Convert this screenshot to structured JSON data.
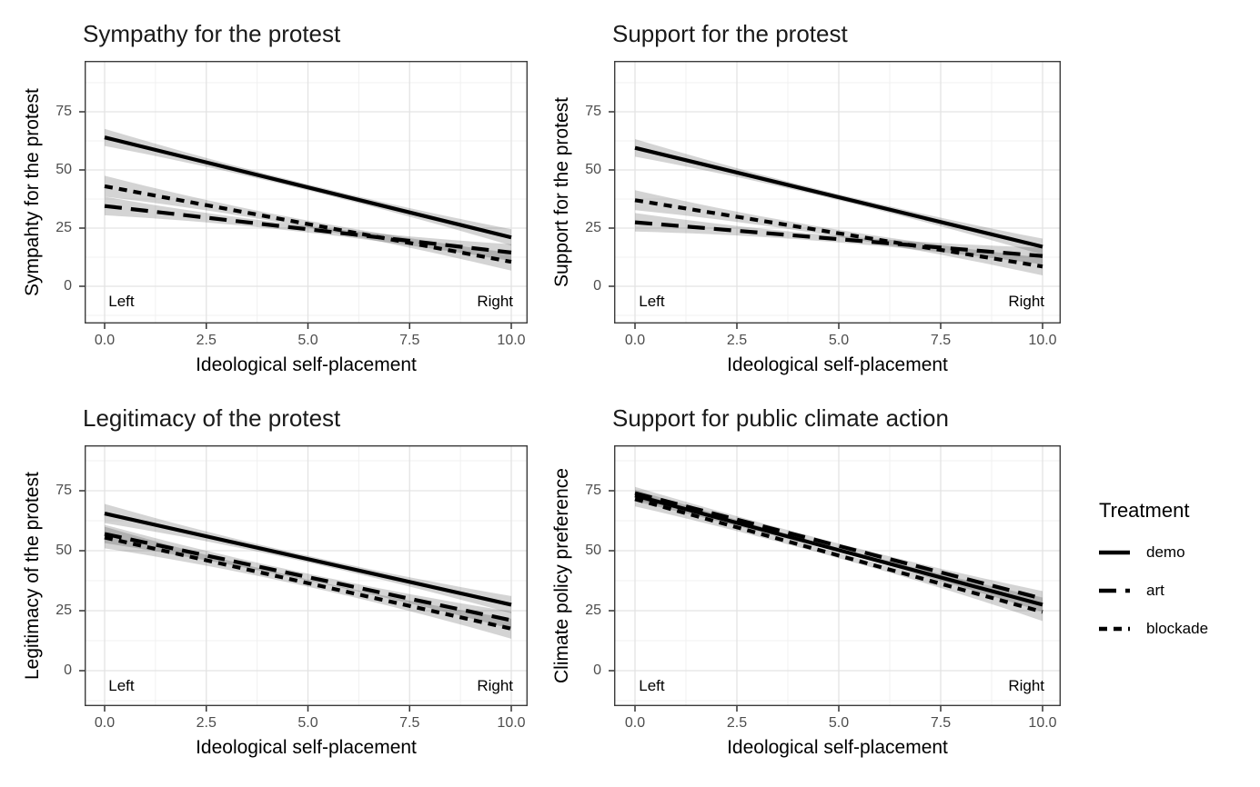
{
  "figure": {
    "background": "#ffffff",
    "legend": {
      "title": "Treatment",
      "position": "right",
      "items": [
        {
          "label": "demo",
          "linetype": "solid"
        },
        {
          "label": "art",
          "linetype": "longdash"
        },
        {
          "label": "blockade",
          "linetype": "dashed"
        }
      ]
    },
    "colors": {
      "line": "#000000",
      "ribbon": "rgba(0,0,0,0.17)",
      "grid_major": "#e3e3e3",
      "grid_minor": "#f0f0f0",
      "panel_border": "#3c3c3c",
      "tick_mark": "#333333",
      "tick_label": "#4d4d4d",
      "text": "#000000"
    }
  },
  "chart_data": [
    {
      "type": "line",
      "title": "Sympathy for the protest",
      "xlabel": "Ideological self-placement",
      "ylabel": "Sympahty for the protest",
      "x_range": [
        0,
        10
      ],
      "x_ticks": [
        "0.0",
        "2.5",
        "5.0",
        "7.5",
        "10.0"
      ],
      "y_ticks": [
        "0",
        "25",
        "50",
        "75"
      ],
      "ylim": [
        -16,
        97
      ],
      "grid": true,
      "annotations": [
        {
          "text": "Left",
          "x": 0.05,
          "y": -6.5,
          "align": "left"
        },
        {
          "text": "Right",
          "x": 10,
          "y": -6.5,
          "align": "right"
        }
      ],
      "series": [
        {
          "name": "demo",
          "linetype": "solid",
          "x": [
            0,
            10
          ],
          "y": [
            64,
            21
          ],
          "ci_halfwidth": {
            "x0": 3.7,
            "mid": 1.3,
            "x10": 3.5
          }
        },
        {
          "name": "art",
          "linetype": "longdash",
          "x": [
            0,
            10
          ],
          "y": [
            34.5,
            14.5
          ],
          "ci_halfwidth": {
            "x0": 4.0,
            "mid": 1.4,
            "x10": 3.6
          }
        },
        {
          "name": "blockade",
          "linetype": "dashed",
          "x": [
            0,
            10
          ],
          "y": [
            43,
            10.5
          ],
          "ci_halfwidth": {
            "x0": 4.5,
            "mid": 1.5,
            "x10": 3.8
          }
        }
      ]
    },
    {
      "type": "line",
      "title": "Support for the protest",
      "xlabel": "Ideological self-placement",
      "ylabel": "Support for the protest",
      "x_range": [
        0,
        10
      ],
      "x_ticks": [
        "0.0",
        "2.5",
        "5.0",
        "7.5",
        "10.0"
      ],
      "y_ticks": [
        "0",
        "25",
        "50",
        "75"
      ],
      "ylim": [
        -16,
        97
      ],
      "grid": true,
      "annotations": [
        {
          "text": "Left",
          "x": 0.05,
          "y": -6.5,
          "align": "left"
        },
        {
          "text": "Right",
          "x": 10,
          "y": -6.5,
          "align": "right"
        }
      ],
      "series": [
        {
          "name": "demo",
          "linetype": "solid",
          "x": [
            0,
            10
          ],
          "y": [
            59.5,
            17
          ],
          "ci_halfwidth": {
            "x0": 3.8,
            "mid": 1.3,
            "x10": 3.5
          }
        },
        {
          "name": "art",
          "linetype": "longdash",
          "x": [
            0,
            10
          ],
          "y": [
            27.5,
            13
          ],
          "ci_halfwidth": {
            "x0": 4.0,
            "mid": 1.4,
            "x10": 3.6
          }
        },
        {
          "name": "blockade",
          "linetype": "dashed",
          "x": [
            0,
            10
          ],
          "y": [
            37,
            8.5
          ],
          "ci_halfwidth": {
            "x0": 4.3,
            "mid": 1.5,
            "x10": 3.8
          }
        }
      ]
    },
    {
      "type": "line",
      "title": "Legitimacy of the protest",
      "xlabel": "Ideological self-placement",
      "ylabel": "Legitimacy of the protest",
      "x_range": [
        0,
        10
      ],
      "x_ticks": [
        "0.0",
        "2.5",
        "5.0",
        "7.5",
        "10.0"
      ],
      "y_ticks": [
        "0",
        "25",
        "50",
        "75"
      ],
      "ylim": [
        -15,
        94
      ],
      "grid": true,
      "annotations": [
        {
          "text": "Left",
          "x": 0.05,
          "y": -6.5,
          "align": "left"
        },
        {
          "text": "Right",
          "x": 10,
          "y": -6.5,
          "align": "right"
        }
      ],
      "series": [
        {
          "name": "demo",
          "linetype": "solid",
          "x": [
            0,
            10
          ],
          "y": [
            65.5,
            27.5
          ],
          "ci_halfwidth": {
            "x0": 4.0,
            "mid": 1.4,
            "x10": 3.6
          }
        },
        {
          "name": "art",
          "linetype": "longdash",
          "x": [
            0,
            10
          ],
          "y": [
            57,
            21
          ],
          "ci_halfwidth": {
            "x0": 3.8,
            "mid": 1.4,
            "x10": 3.6
          }
        },
        {
          "name": "blockade",
          "linetype": "dashed",
          "x": [
            0,
            10
          ],
          "y": [
            55.5,
            17.5
          ],
          "ci_halfwidth": {
            "x0": 4.5,
            "mid": 1.5,
            "x10": 4.2
          }
        }
      ]
    },
    {
      "type": "line",
      "title": "Support for public climate action",
      "xlabel": "Ideological self-placement",
      "ylabel": "Climate policy preference",
      "x_range": [
        0,
        10
      ],
      "x_ticks": [
        "0.0",
        "2.5",
        "5.0",
        "7.5",
        "10.0"
      ],
      "y_ticks": [
        "0",
        "25",
        "50",
        "75"
      ],
      "ylim": [
        -15,
        94
      ],
      "grid": true,
      "annotations": [
        {
          "text": "Left",
          "x": 0.05,
          "y": -6.5,
          "align": "left"
        },
        {
          "text": "Right",
          "x": 10,
          "y": -6.5,
          "align": "right"
        }
      ],
      "series": [
        {
          "name": "demo",
          "linetype": "solid",
          "x": [
            0,
            10
          ],
          "y": [
            73,
            27.5
          ],
          "ci_halfwidth": {
            "x0": 2.4,
            "mid": 0.9,
            "x10": 3.0
          }
        },
        {
          "name": "art",
          "linetype": "longdash",
          "x": [
            0,
            10
          ],
          "y": [
            74,
            30
          ],
          "ci_halfwidth": {
            "x0": 2.6,
            "mid": 1.0,
            "x10": 3.2
          }
        },
        {
          "name": "blockade",
          "linetype": "dashed",
          "x": [
            0,
            10
          ],
          "y": [
            71.5,
            24.5
          ],
          "ci_halfwidth": {
            "x0": 3.0,
            "mid": 1.1,
            "x10": 3.8
          }
        }
      ]
    }
  ]
}
